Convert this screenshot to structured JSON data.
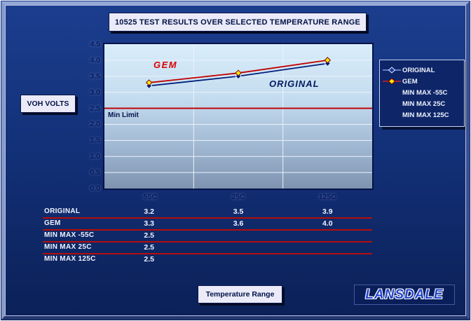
{
  "title": "10525 TEST RESULTS OVER SELECTED TEMPERATURE RANGE",
  "y_axis_box": "VOH VOLTS",
  "x_axis_box": "Temperature Range",
  "logo_text": "LANSDALE",
  "annotations": {
    "gem_label": "GEM",
    "original_label": "ORIGINAL",
    "min_limit_label": "Min Limit"
  },
  "colors": {
    "background": "#133179",
    "box_fill": "#eaeaf8",
    "box_text": "#001246",
    "limit_red": "#b50d0d",
    "original_blue": "#001f7a",
    "gem_red": "#c00000",
    "gem_marker_yellow": "#ffe800",
    "gridline": "#e9f3fb"
  },
  "chart_data": {
    "type": "line",
    "title": "10525 TEST RESULTS OVER SELECTED TEMPERATURE RANGE",
    "ylabel": "VOH VOLTS",
    "xlabel": "Temperature Range",
    "categories": [
      "-55C",
      "25C",
      "125C"
    ],
    "ylim": [
      0,
      4.5
    ],
    "ytick_step": 0.5,
    "grid": "on",
    "legend_position": "right",
    "series": [
      {
        "name": "ORIGINAL",
        "values": [
          3.2,
          3.5,
          3.9
        ],
        "color": "#001f7a",
        "marker": "diamond",
        "marker_fill": "#001f7a",
        "marker_stroke": "#dfe8fa"
      },
      {
        "name": "GEM",
        "values": [
          3.3,
          3.6,
          4.0
        ],
        "color": "#c00000",
        "marker": "diamond",
        "marker_fill": "#ffe800",
        "marker_stroke": "#7a0000"
      },
      {
        "name": "MIN MAX -55C",
        "values": [
          2.5
        ],
        "limit_line": true,
        "color": "#c00000"
      },
      {
        "name": "MIN MAX 25C",
        "values": [
          2.5
        ],
        "limit_line": true,
        "color": "#c00000"
      },
      {
        "name": "MIN MAX 125C",
        "values": [
          2.5
        ],
        "limit_line": true,
        "color": "#c00000"
      }
    ]
  },
  "legend": {
    "items": [
      {
        "label": "ORIGINAL",
        "marker": true,
        "line_color": "#7f9bdf",
        "fill": "#16379c",
        "stroke": "#dfe8fa"
      },
      {
        "label": "GEM",
        "marker": true,
        "line_color": "#d42020",
        "fill": "#ffe800",
        "stroke": "#8a0000"
      },
      {
        "label": "MIN MAX -55C",
        "marker": false
      },
      {
        "label": "MIN MAX 25C",
        "marker": false
      },
      {
        "label": "MIN MAX 125C",
        "marker": false
      }
    ]
  },
  "table": {
    "rows": [
      {
        "label": "ORIGINAL",
        "values": [
          "3.2",
          "3.5",
          "3.9"
        ],
        "divider": true
      },
      {
        "label": "GEM",
        "values": [
          "3.3",
          "3.6",
          "4.0"
        ],
        "divider": true
      },
      {
        "label": "MIN MAX -55C",
        "values": [
          "2.5",
          "",
          ""
        ],
        "divider": true
      },
      {
        "label": "MIN MAX 25C",
        "values": [
          "2.5",
          "",
          ""
        ],
        "divider": true
      },
      {
        "label": "MIN MAX 125C",
        "values": [
          "2.5",
          "",
          ""
        ],
        "divider": false
      }
    ]
  }
}
